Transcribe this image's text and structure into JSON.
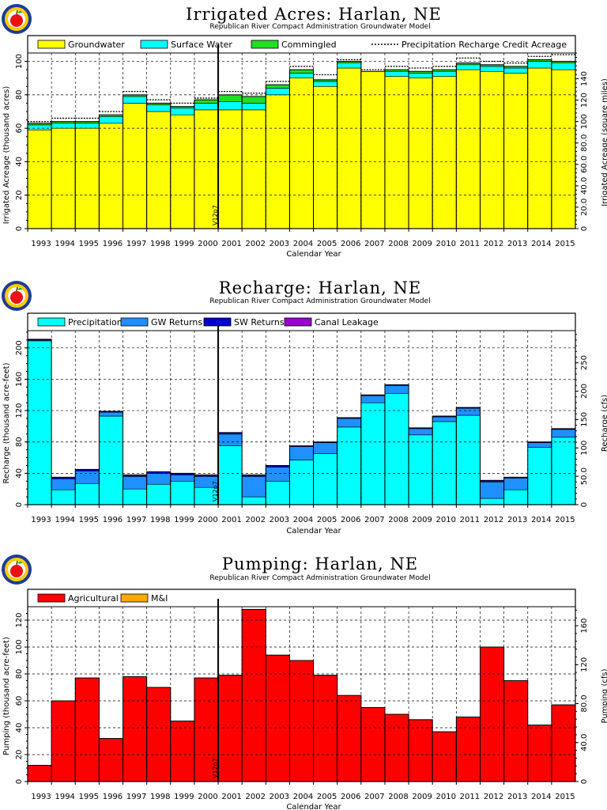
{
  "logo_icon": "apple-logo-icon",
  "colors": {
    "groundwater": "#ffff00",
    "surface_water": "#00ffff",
    "commingled": "#22dd22",
    "precipitation": "#00ffff",
    "gw_returns": "#1e90ff",
    "sw_returns": "#0000cc",
    "canal_leakage": "#9900cc",
    "agricultural": "#ff0000",
    "mi": "#ffaa00"
  },
  "chart_data": [
    {
      "type": "bar",
      "stacked": true,
      "title": "Irrigated  Acres:  Harlan,  NE",
      "subtitle": "Republican  River  Compact  Administration  Groundwater  Model",
      "xlabel": "Calendar  Year",
      "ylabel": "Irrigated  Acreage  (thousand  acres)",
      "ylabel_right": "Irrigated  Acreage  (square  miles)",
      "ylim": [
        0,
        105
      ],
      "ylim_right": [
        0,
        164.06
      ],
      "yticks": [
        "0",
        "20",
        "40",
        "60",
        "80",
        "100"
      ],
      "yticks_right": [
        "0",
        "20.0",
        "40.0",
        "60.0",
        "80.0",
        "100",
        "120",
        "140"
      ],
      "vline_year": "2000",
      "vline_label": "V12p7",
      "legend": [
        "Groundwater",
        "Surface Water",
        "Commingled",
        "Precipitation  Recharge  Credit  Acreage"
      ],
      "categories": [
        "1993",
        "1994",
        "1995",
        "1996",
        "1997",
        "1998",
        "1999",
        "2000",
        "2001",
        "2002",
        "2003",
        "2004",
        "2005",
        "2006",
        "2007",
        "2008",
        "2009",
        "2010",
        "2011",
        "2012",
        "2013",
        "2014",
        "2015"
      ],
      "series": [
        {
          "name": "Groundwater",
          "values": [
            59,
            60,
            60,
            63,
            75,
            70,
            68,
            71,
            71,
            71,
            80,
            90,
            85,
            96,
            94,
            91,
            90,
            91,
            95,
            94,
            93,
            96,
            95
          ]
        },
        {
          "name": "Surface Water",
          "values": [
            3,
            3,
            3,
            4,
            4,
            4,
            4,
            4,
            5,
            4,
            4,
            3,
            3,
            3,
            0,
            3,
            3,
            3,
            3,
            3,
            3,
            4,
            4
          ]
        },
        {
          "name": "Commingled",
          "values": [
            1,
            1,
            1,
            1,
            1,
            1,
            1,
            2,
            4,
            4,
            2,
            2,
            1,
            1,
            0,
            1,
            1,
            1,
            1,
            1,
            1,
            1,
            1
          ]
        },
        {
          "name": "Precipitation  Recharge  Credit  Acreage",
          "values": [
            64,
            66,
            66,
            70,
            82,
            77,
            75,
            78,
            82,
            81,
            88,
            97,
            92,
            101,
            95,
            97,
            96,
            97,
            102,
            100,
            99,
            103,
            104
          ]
        }
      ]
    },
    {
      "type": "bar",
      "stacked": true,
      "title": "Recharge:  Harlan,  NE",
      "subtitle": "Republican  River  Compact  Administration  Groundwater  Model",
      "xlabel": "Calendar  Year",
      "ylabel": "Recharge  (thousand  acre-feet)",
      "ylabel_right": "Recharge  (cfs)",
      "ylim": [
        0,
        222
      ],
      "ylim_right": [
        0,
        306.6
      ],
      "yticks": [
        "0",
        "40",
        "80",
        "120",
        "160",
        "200"
      ],
      "yticks_right": [
        "0",
        "50.0",
        "100",
        "150",
        "200",
        "250"
      ],
      "vline_year": "2000",
      "vline_label": "V12p7",
      "legend": [
        "Precipitation",
        "GW  Returns",
        "SW  Returns",
        "Canal  Leakage"
      ],
      "categories": [
        "1993",
        "1994",
        "1995",
        "1996",
        "1997",
        "1998",
        "1999",
        "2000",
        "2001",
        "2002",
        "2003",
        "2004",
        "2005",
        "2006",
        "2007",
        "2008",
        "2009",
        "2010",
        "2011",
        "2012",
        "2013",
        "2014",
        "2015"
      ],
      "series": [
        {
          "name": "Precipitation",
          "values": [
            209,
            19,
            27,
            113,
            20,
            26,
            30,
            22,
            75,
            10,
            30,
            57,
            65,
            99,
            130,
            142,
            89,
            106,
            114,
            8,
            19,
            73,
            86
          ]
        },
        {
          "name": "GW  Returns",
          "values": [
            1,
            14,
            16,
            5,
            16,
            14,
            8,
            14,
            15,
            26,
            18,
            17,
            14,
            11,
            9,
            10,
            8,
            6,
            9,
            21,
            15,
            6,
            10
          ]
        },
        {
          "name": "SW  Returns",
          "values": [
            1,
            2,
            2,
            1,
            2,
            2,
            2,
            2,
            2,
            2,
            2,
            1,
            1,
            1,
            1,
            1,
            1,
            1,
            1,
            2,
            1,
            1,
            1
          ]
        },
        {
          "name": "Canal  Leakage",
          "values": [
            0,
            0,
            0,
            0,
            0,
            0,
            0,
            0,
            0,
            0,
            0,
            0,
            0,
            0,
            0,
            0,
            0,
            0,
            0,
            0,
            0,
            0,
            0
          ]
        }
      ]
    },
    {
      "type": "bar",
      "stacked": true,
      "title": "Pumping:  Harlan,  NE",
      "subtitle": "Republican  River  Compact  Administration  Groundwater  Model",
      "xlabel": "Calendar  Year",
      "ylabel": "Pumping  (thousand  acre-feet)",
      "ylabel_right": "Pumping  (cfs)",
      "ylim": [
        0,
        130
      ],
      "ylim_right": [
        0,
        179.5
      ],
      "yticks": [
        "0",
        "20",
        "40",
        "60",
        "80",
        "100",
        "120"
      ],
      "yticks_right": [
        "0",
        "40.0",
        "80.0",
        "120",
        "160"
      ],
      "vline_year": "2000",
      "vline_label": "V12p7",
      "legend": [
        "Agricultural",
        "M&I"
      ],
      "categories": [
        "1993",
        "1994",
        "1995",
        "1996",
        "1997",
        "1998",
        "1999",
        "2000",
        "2001",
        "2002",
        "2003",
        "2004",
        "2005",
        "2006",
        "2007",
        "2008",
        "2009",
        "2010",
        "2011",
        "2012",
        "2013",
        "2014",
        "2015"
      ],
      "series": [
        {
          "name": "Agricultural",
          "values": [
            12,
            60,
            77,
            32,
            78,
            70,
            45,
            77,
            79,
            128,
            94,
            90,
            79,
            64,
            55,
            50,
            46,
            37,
            48,
            100,
            75,
            42,
            57
          ]
        },
        {
          "name": "M&I",
          "values": [
            0,
            0,
            0,
            0,
            0,
            0,
            0,
            0,
            0,
            0,
            0,
            0,
            0,
            0,
            0,
            0,
            0,
            0,
            0,
            0,
            0,
            0,
            0
          ]
        }
      ]
    }
  ]
}
